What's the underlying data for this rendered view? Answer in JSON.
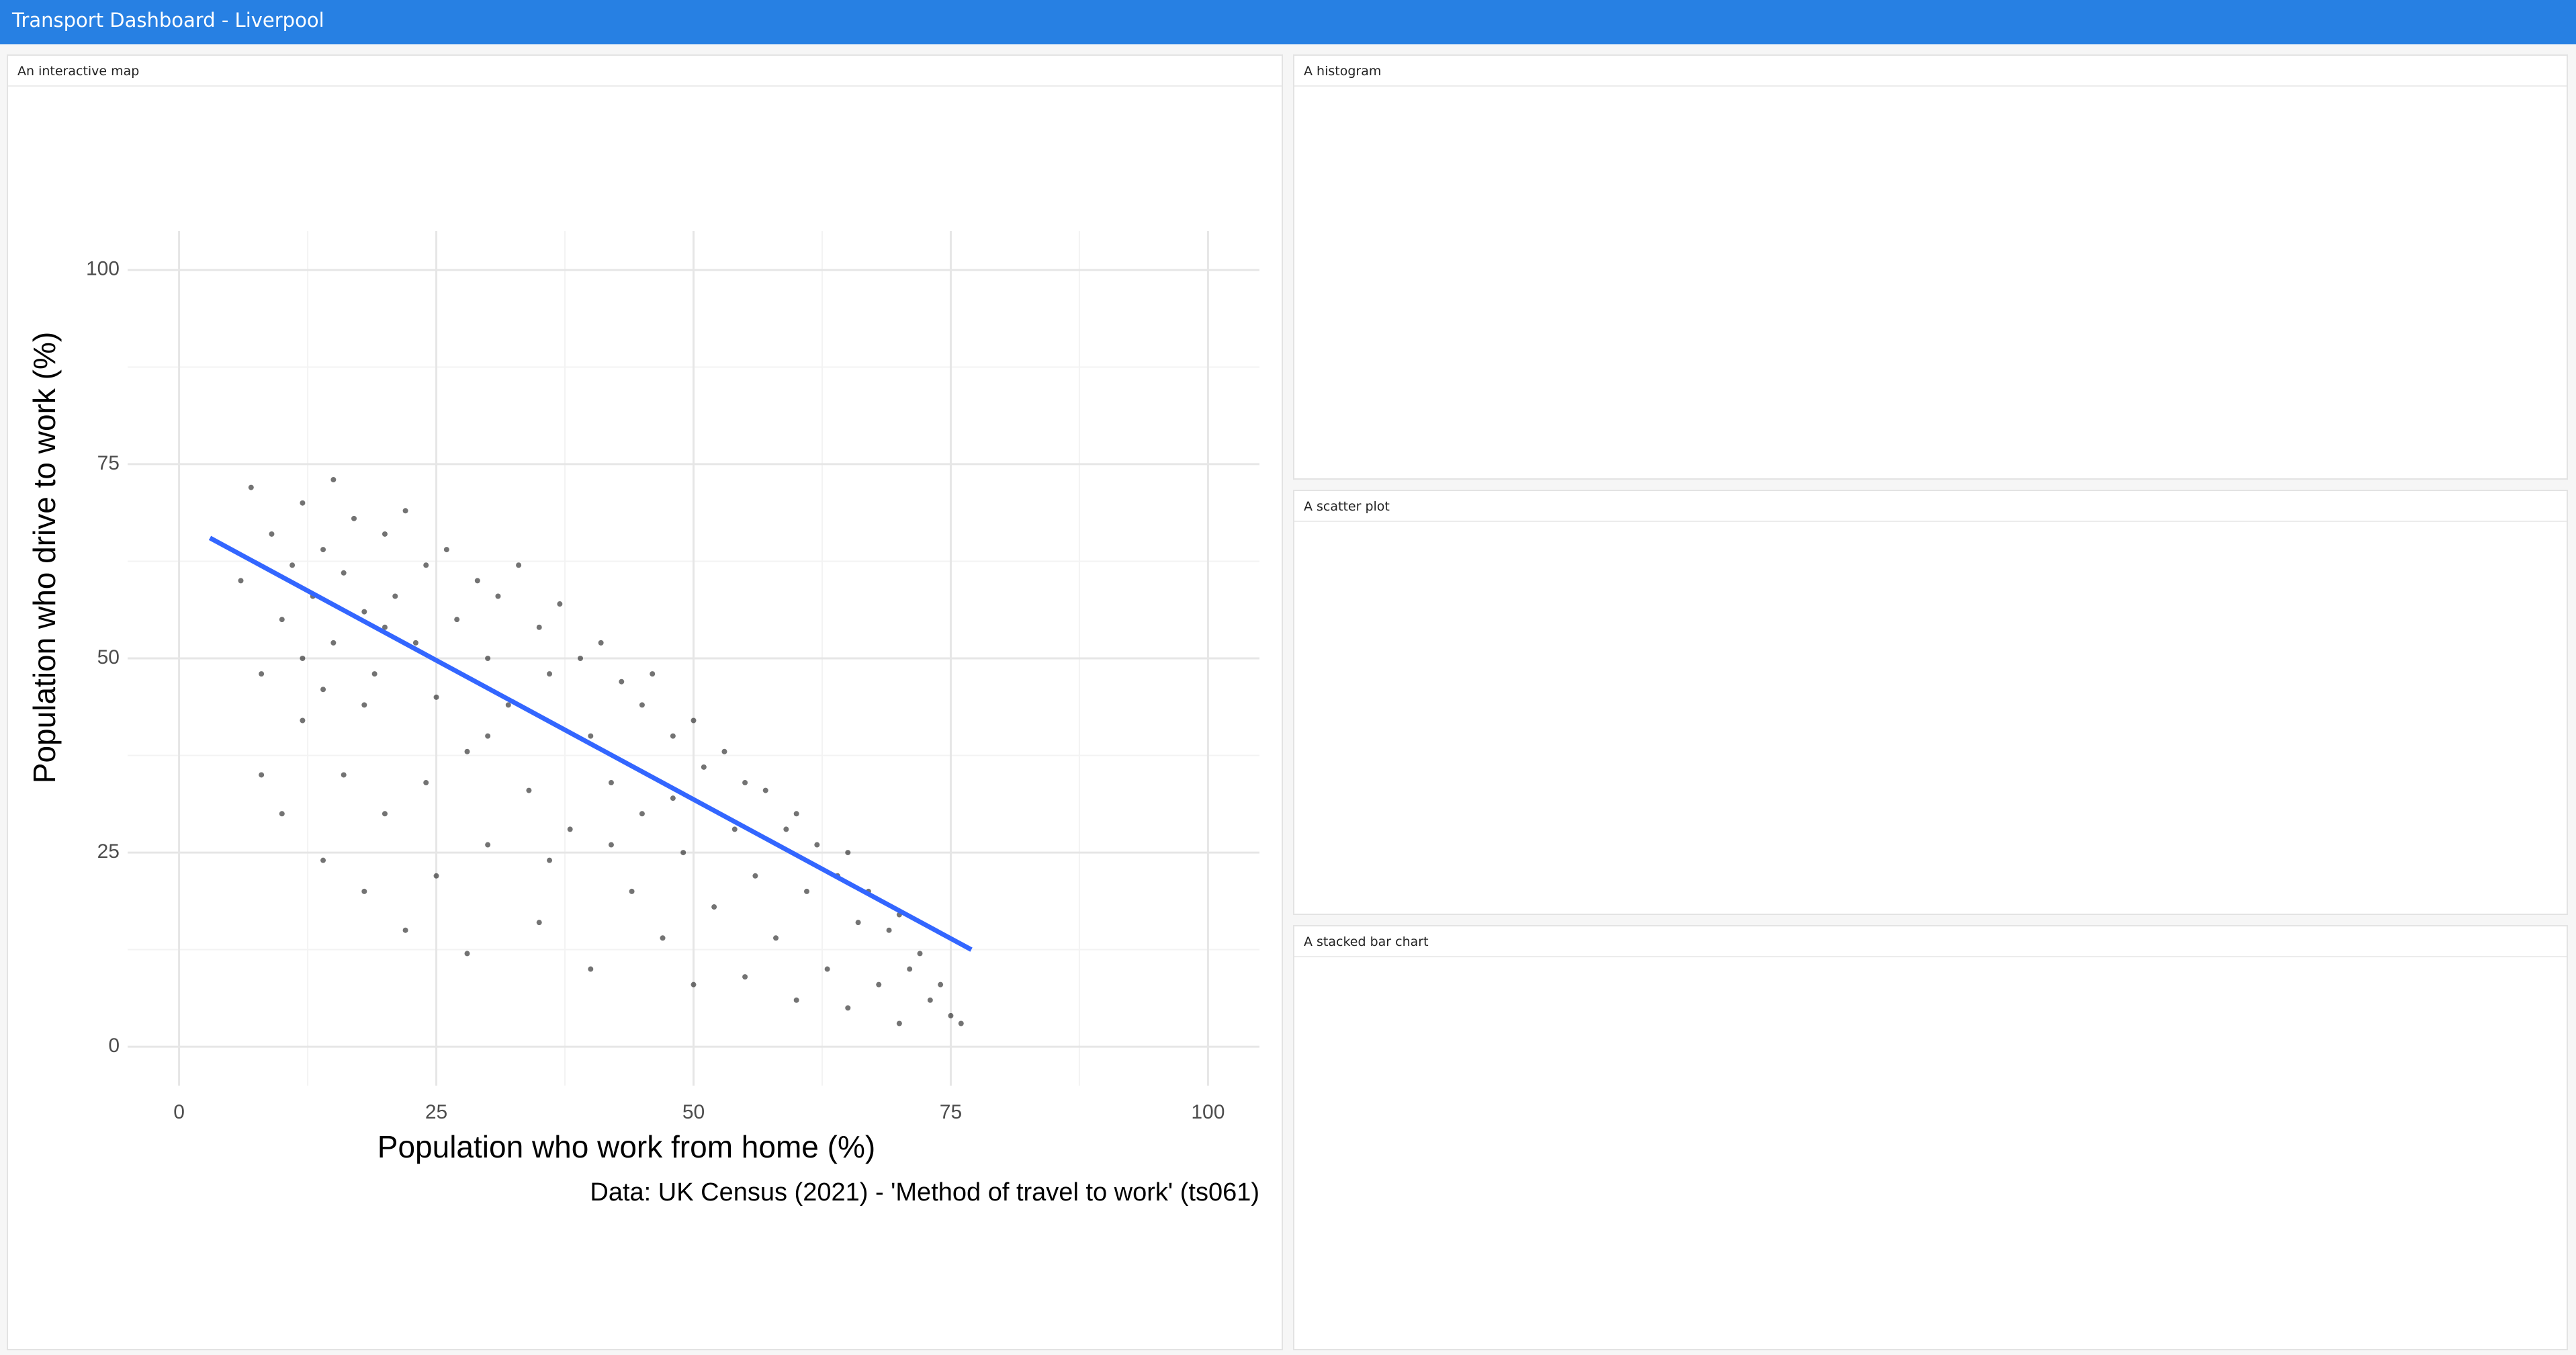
{
  "header": {
    "title": "Transport Dashboard - Liverpool"
  },
  "panels": [
    {
      "title": "An interactive map",
      "chart_data": {
        "type": "scatter",
        "x_label": "Population who work from home (%)",
        "y_label": "Population who drive to work (%)",
        "caption": "Data: UK Census (2021) - 'Method of travel to work' (ts061)",
        "xlim": [
          -5,
          105
        ],
        "ylim": [
          -5,
          105
        ],
        "xticks": [
          0,
          25,
          50,
          75,
          100
        ],
        "yticks": [
          0,
          25,
          50,
          75,
          100
        ],
        "grid": true,
        "color": "#000000",
        "x": [
          6,
          7,
          8,
          9,
          10,
          10,
          11,
          12,
          12,
          13,
          14,
          14,
          15,
          15,
          16,
          16,
          17,
          18,
          18,
          19,
          20,
          20,
          21,
          22,
          22,
          23,
          24,
          25,
          25,
          26,
          27,
          28,
          28,
          29,
          30,
          30,
          31,
          32,
          33,
          34,
          35,
          35,
          36,
          37,
          38,
          39,
          40,
          40,
          41,
          42,
          43,
          44,
          45,
          45,
          46,
          47,
          48,
          49,
          50,
          50,
          51,
          52,
          53,
          54,
          55,
          55,
          56,
          57,
          58,
          59,
          60,
          60,
          61,
          62,
          63,
          64,
          65,
          65,
          66,
          67,
          68,
          69,
          70,
          70,
          71,
          72,
          73,
          74,
          75,
          76,
          8,
          12,
          18,
          24,
          30,
          36,
          42,
          48,
          14,
          20
        ],
        "y": [
          60,
          72,
          48,
          66,
          55,
          30,
          62,
          70,
          42,
          58,
          64,
          24,
          52,
          73,
          61,
          35,
          68,
          56,
          20,
          48,
          66,
          30,
          58,
          69,
          15,
          52,
          62,
          45,
          22,
          64,
          55,
          38,
          12,
          60,
          50,
          26,
          58,
          44,
          62,
          33,
          54,
          16,
          48,
          57,
          28,
          50,
          40,
          10,
          52,
          34,
          47,
          20,
          44,
          30,
          48,
          14,
          40,
          25,
          42,
          8,
          36,
          18,
          38,
          28,
          34,
          9,
          22,
          33,
          14,
          28,
          30,
          6,
          20,
          26,
          10,
          22,
          25,
          5,
          16,
          20,
          8,
          15,
          17,
          3,
          10,
          12,
          6,
          8,
          4,
          3,
          35,
          50,
          44,
          34,
          40,
          24,
          26,
          32,
          46,
          54
        ],
        "trend": {
          "x": [
            3,
            77
          ],
          "y": [
            65.5,
            12.5
          ],
          "color": "#3366ff"
        }
      }
    },
    {
      "title": "A histogram"
    },
    {
      "title": "A scatter plot"
    },
    {
      "title": "A stacked bar chart"
    }
  ]
}
